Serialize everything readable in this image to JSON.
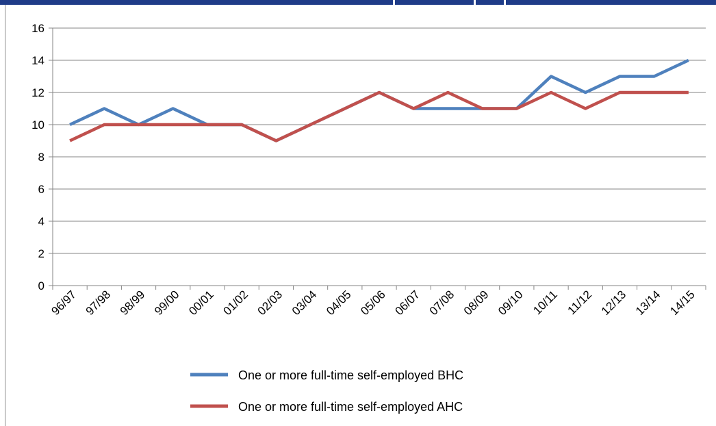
{
  "chart_data": {
    "type": "line",
    "title": "",
    "xlabel": "",
    "ylabel": "",
    "ylim": [
      0,
      16
    ],
    "yticks": [
      "0",
      "2",
      "4",
      "6",
      "8",
      "10",
      "12",
      "14",
      "16"
    ],
    "grid": "horizontal",
    "legend_position": "bottom",
    "categories": [
      "96/97",
      "97/98",
      "98/99",
      "99/00",
      "00/01",
      "01/02",
      "02/03",
      "03/04",
      "04/05",
      "05/06",
      "06/07",
      "07/08",
      "08/09",
      "09/10",
      "10/11",
      "11/12",
      "12/13",
      "13/14",
      "14/15"
    ],
    "series": [
      {
        "name": "One or more full-time self-employed BHC",
        "color": "#4f81bd",
        "values": [
          10,
          11,
          10,
          11,
          10,
          10,
          9,
          10,
          11,
          12,
          11,
          11,
          11,
          11,
          13,
          12,
          13,
          13,
          14
        ]
      },
      {
        "name": "One or more full-time self-employed AHC",
        "color": "#c0504d",
        "values": [
          9,
          10,
          10,
          10,
          10,
          10,
          9,
          10,
          11,
          12,
          11,
          12,
          11,
          11,
          12,
          11,
          12,
          12,
          12
        ]
      }
    ]
  }
}
